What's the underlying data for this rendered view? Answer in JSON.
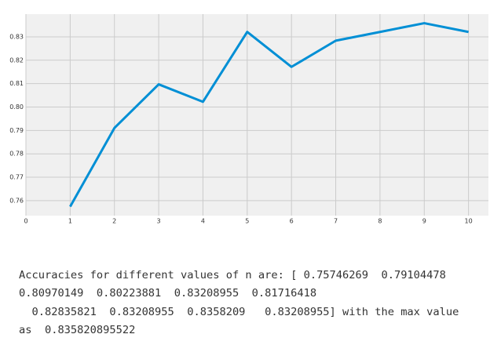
{
  "chart_data": {
    "type": "line",
    "x": [
      1,
      2,
      3,
      4,
      5,
      6,
      7,
      8,
      9,
      10
    ],
    "series": [
      {
        "color": "#008fd5",
        "values": [
          0.75746269,
          0.79104478,
          0.80970149,
          0.80223881,
          0.83208955,
          0.81716418,
          0.82835821,
          0.83208955,
          0.8358209,
          0.83208955
        ]
      }
    ],
    "xlim": [
      0,
      10.45
    ],
    "xticks": [
      0,
      1,
      2,
      3,
      4,
      5,
      6,
      7,
      8,
      9,
      10
    ],
    "ylim": [
      0.7536,
      0.8397
    ],
    "yticks": [
      0.76,
      0.77,
      0.78,
      0.79,
      {
        "value": 0.8,
        "label": "0.80"
      },
      0.81,
      0.82,
      0.83
    ],
    "grid": true
  },
  "output": {
    "lines": [
      "Accuracies for different values of n are: [ 0.75746269  0.79104478",
      "0.80970149  0.80223881  0.83208955  0.81716418",
      "  0.82835821  0.83208955  0.8358209   0.83208955] with the max value",
      "as  0.835820895522"
    ]
  }
}
